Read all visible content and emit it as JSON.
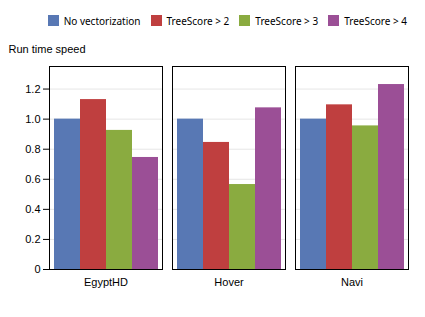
{
  "chart_data": {
    "type": "bar",
    "categories": [
      "EgyptHD",
      "Hover",
      "Navi"
    ],
    "series": [
      {
        "name": "No vectorization",
        "color": "#5878b4",
        "values": [
          1.0,
          1.0,
          1.0
        ]
      },
      {
        "name": "TreeScore > 2",
        "color": "#bf3f3f",
        "values": [
          1.13,
          0.845,
          1.095
        ]
      },
      {
        "name": "TreeScore > 3",
        "color": "#8aab40",
        "values": [
          0.925,
          0.565,
          0.955
        ]
      },
      {
        "name": "TreeScore > 4",
        "color": "#9b4f96",
        "values": [
          0.745,
          1.075,
          1.23
        ]
      }
    ],
    "ylabel": "Run time speed",
    "ylim": [
      0,
      1.35
    ],
    "yticks": [
      0,
      0.2,
      0.4,
      0.6,
      0.8,
      {
        "value": 1.0,
        "label": "1.0"
      },
      1.2
    ],
    "grid": true,
    "legend": "upper right"
  }
}
